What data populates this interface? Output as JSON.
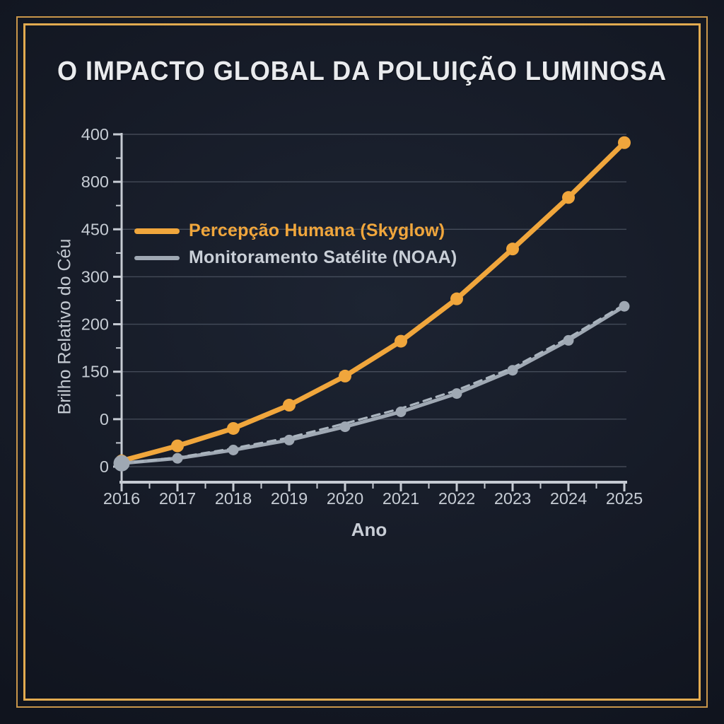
{
  "title": "O IMPACTO GLOBAL DA POLUIÇÃO LUMINOSA",
  "axes": {
    "xlabel": "Ano",
    "ylabel": "Brilho Relativo do Céu"
  },
  "legend": {
    "items": [
      {
        "label": "Percepção Humana (Skyglow)",
        "color": "#f0a63c"
      },
      {
        "label": "Monitoramento Satélite (NOAA)",
        "color": "#9fa8b3",
        "text_color": "#c9cfd7"
      }
    ]
  },
  "chart_data": {
    "type": "line",
    "title": "O IMPACTO GLOBAL DA POLUIÇÃO LUMINOSA",
    "xlabel": "Ano",
    "ylabel": "Brilho Relativo do Céu",
    "x": [
      2016,
      2017,
      2018,
      2019,
      2020,
      2021,
      2022,
      2023,
      2024,
      2025
    ],
    "x_tick_labels": [
      "2016",
      "2017",
      "2018",
      "2019",
      "2020",
      "2021",
      "2022",
      "2023",
      "2024",
      "2025"
    ],
    "y_tick_labels_top_to_bottom": [
      "400",
      "800",
      "450",
      "300",
      "200",
      "150",
      "0",
      "0"
    ],
    "y_scale_for_values": [
      0,
      400
    ],
    "grid": true,
    "legend_position": "upper left inside plot",
    "series": [
      {
        "name": "Percepção Humana (Skyglow)",
        "color": "#f0a63c",
        "line_style": "solid",
        "marker": "circle",
        "values": [
          7,
          25,
          46,
          74,
          109,
          151,
          202,
          262,
          324,
          390
        ]
      },
      {
        "name": "Monitoramento Satélite (NOAA)",
        "color": "#9fa8b3",
        "line_style": "solid",
        "marker": "circle",
        "values": [
          4,
          10,
          20,
          32,
          48,
          66,
          88,
          116,
          152,
          193
        ]
      },
      {
        "name": "unlabeled dashed trend overlay on NOAA series",
        "color": "#aab4be",
        "line_style": "dashed",
        "marker": "none",
        "values": [
          4,
          11,
          22,
          35,
          52,
          70,
          92,
          119,
          155,
          195
        ]
      }
    ]
  },
  "colors": {
    "background": "#161b27",
    "frame_gold_outer": "#c9964a",
    "frame_gold_inner": "#e2ab50",
    "title_text": "#e9ebee",
    "axis_line": "#c6cbd3",
    "tick_label": "#c6ccd4",
    "gridline": "rgba(195,205,222,0.26)"
  }
}
